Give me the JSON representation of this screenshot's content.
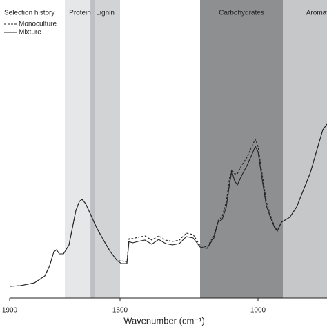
{
  "chart_data": {
    "type": "line",
    "x_label": "Wavenumber (cm⁻¹)",
    "legend_title": "Selection history",
    "xlim": [
      1900,
      750
    ],
    "xticks": [
      1900,
      1500,
      1000
    ],
    "ylim": [
      0,
      108
    ],
    "regions": [
      {
        "label": "Protein",
        "range": [
          1700,
          1590
        ],
        "color": "#e6e7e8"
      },
      {
        "label": "Lignin",
        "range": [
          1607,
          1500
        ],
        "color": "#d2d3d5"
      },
      {
        "label": "Carbohydrates",
        "range": [
          1210,
          910
        ],
        "color": "#8e8f91"
      },
      {
        "label": "Aromatics",
        "range": [
          910,
          750
        ],
        "color": "#c6c7c9"
      }
    ],
    "x": [
      1900,
      1860,
      1810,
      1772.5,
      1755,
      1740,
      1730,
      1720,
      1705,
      1685,
      1672.5,
      1660,
      1647.5,
      1637.5,
      1625,
      1610,
      1585,
      1560,
      1535,
      1510,
      1495,
      1475,
      1467.5,
      1455,
      1435,
      1410,
      1385,
      1360,
      1335,
      1310,
      1285,
      1260,
      1235,
      1210,
      1185,
      1160,
      1145,
      1130,
      1115,
      1102.5,
      1095,
      1085,
      1075,
      1060,
      1040,
      1020,
      1010,
      1000,
      985,
      970,
      955,
      940,
      930,
      915,
      885,
      860,
      835,
      810,
      785,
      765,
      750
    ],
    "series": [
      {
        "name": "Monoculture",
        "color": "#222222",
        "dash": true,
        "values": [
          4.25,
          4.5,
          5.5,
          8,
          11.75,
          16.75,
          17.5,
          16,
          16,
          19.25,
          25.5,
          31.75,
          35,
          35.75,
          34.25,
          31,
          25.5,
          21,
          16.75,
          13.5,
          13.5,
          13,
          21.5,
          21.5,
          22,
          22.5,
          21,
          22.5,
          21,
          20.5,
          21,
          23.5,
          23,
          19,
          18.5,
          22.5,
          28,
          29.5,
          35,
          44,
          46.5,
          45,
          45,
          48,
          51,
          55.5,
          57.5,
          55,
          45,
          35,
          30,
          26,
          24.5,
          27.5,
          29.25,
          33,
          39.25,
          45.5,
          54.25,
          61,
          63
        ]
      },
      {
        "name": "Mixture",
        "color": "#222222",
        "dash": false,
        "values": [
          4.25,
          4.5,
          5.5,
          8,
          11.75,
          16.75,
          17.5,
          16,
          16,
          19.25,
          25.5,
          31.75,
          35,
          35.75,
          34.25,
          31,
          25.5,
          21,
          16.75,
          13.5,
          12.5,
          12.5,
          20.5,
          20,
          20.5,
          21,
          19.5,
          21.25,
          19.75,
          19.25,
          19.75,
          22.25,
          21.75,
          18.5,
          18,
          21.75,
          27.5,
          28.5,
          33,
          41.75,
          46,
          42.5,
          41,
          44.25,
          48,
          52.5,
          55,
          53,
          43,
          33.5,
          29.25,
          25.5,
          24.25,
          27.5,
          29.25,
          33,
          39.25,
          45.5,
          54.25,
          61,
          63
        ]
      }
    ]
  }
}
